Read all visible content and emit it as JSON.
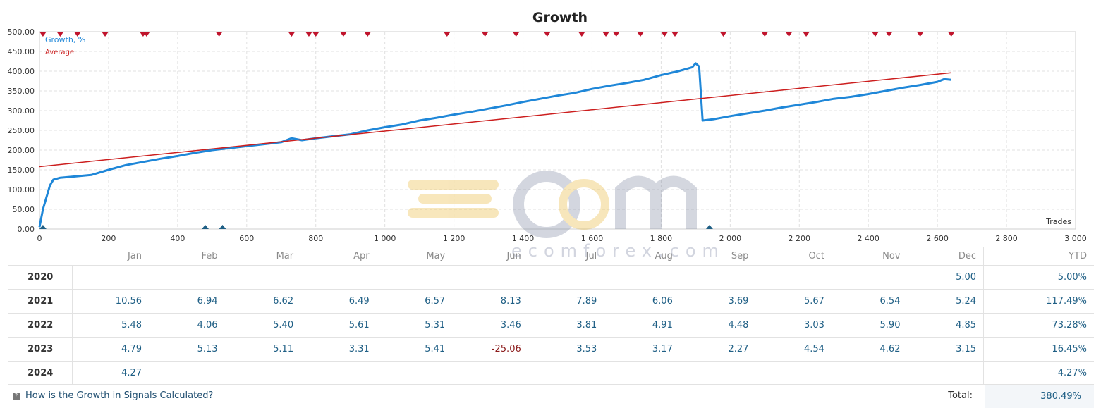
{
  "chart_data": {
    "type": "line",
    "title": "Growth",
    "xlabel": "Trades",
    "ylabel": "",
    "xlim": [
      0,
      3000
    ],
    "ylim": [
      0,
      500
    ],
    "x_ticks": [
      "0",
      "200",
      "400",
      "600",
      "800",
      "1 000",
      "1 200",
      "1 400",
      "1 600",
      "1 800",
      "2 000",
      "2 200",
      "2 400",
      "2 600",
      "2 800",
      "3 000"
    ],
    "y_ticks": [
      "0.00",
      "50.00",
      "100.00",
      "150.00",
      "200.00",
      "250.00",
      "300.00",
      "350.00",
      "400.00",
      "450.00",
      "500.00"
    ],
    "grid": true,
    "legend_placement": "top-left",
    "series": [
      {
        "name": "Growth, %",
        "color": "#1f87d8",
        "points": [
          [
            0,
            5
          ],
          [
            10,
            50
          ],
          [
            20,
            80
          ],
          [
            30,
            110
          ],
          [
            40,
            125
          ],
          [
            60,
            130
          ],
          [
            100,
            133
          ],
          [
            150,
            137
          ],
          [
            200,
            150
          ],
          [
            250,
            162
          ],
          [
            300,
            170
          ],
          [
            350,
            178
          ],
          [
            400,
            185
          ],
          [
            450,
            193
          ],
          [
            500,
            200
          ],
          [
            550,
            205
          ],
          [
            600,
            210
          ],
          [
            650,
            215
          ],
          [
            700,
            220
          ],
          [
            730,
            230
          ],
          [
            760,
            225
          ],
          [
            800,
            230
          ],
          [
            850,
            235
          ],
          [
            900,
            240
          ],
          [
            950,
            250
          ],
          [
            1000,
            258
          ],
          [
            1050,
            265
          ],
          [
            1100,
            275
          ],
          [
            1150,
            282
          ],
          [
            1200,
            290
          ],
          [
            1250,
            297
          ],
          [
            1300,
            305
          ],
          [
            1350,
            313
          ],
          [
            1400,
            322
          ],
          [
            1450,
            330
          ],
          [
            1500,
            338
          ],
          [
            1550,
            345
          ],
          [
            1600,
            355
          ],
          [
            1650,
            363
          ],
          [
            1700,
            370
          ],
          [
            1750,
            378
          ],
          [
            1800,
            390
          ],
          [
            1850,
            400
          ],
          [
            1890,
            410
          ],
          [
            1900,
            420
          ],
          [
            1910,
            412
          ],
          [
            1920,
            275
          ],
          [
            1950,
            278
          ],
          [
            2000,
            286
          ],
          [
            2050,
            293
          ],
          [
            2100,
            300
          ],
          [
            2150,
            308
          ],
          [
            2200,
            315
          ],
          [
            2250,
            322
          ],
          [
            2300,
            330
          ],
          [
            2350,
            335
          ],
          [
            2400,
            342
          ],
          [
            2450,
            350
          ],
          [
            2500,
            358
          ],
          [
            2550,
            365
          ],
          [
            2600,
            373
          ],
          [
            2620,
            380
          ],
          [
            2640,
            378
          ]
        ]
      },
      {
        "name": "Average",
        "color": "#cc1e1e",
        "points": [
          [
            0,
            158
          ],
          [
            2640,
            396
          ]
        ]
      }
    ],
    "markers_top_x": [
      10,
      60,
      110,
      190,
      300,
      310,
      520,
      730,
      780,
      880,
      800,
      950,
      1180,
      1290,
      1380,
      1470,
      1570,
      1640,
      1670,
      1740,
      1810,
      1840,
      1980,
      2100,
      2170,
      2220,
      2420,
      2460,
      2550,
      2640
    ],
    "markers_bottom_x": [
      10,
      480,
      530,
      1940
    ]
  },
  "watermark": "ecomforex.com",
  "table": {
    "headers": [
      "Jan",
      "Feb",
      "Mar",
      "Apr",
      "May",
      "Jun",
      "Jul",
      "Aug",
      "Sep",
      "Oct",
      "Nov",
      "Dec"
    ],
    "ytd_header": "YTD",
    "rows": [
      {
        "year": "2020",
        "months": [
          "",
          "",
          "",
          "",
          "",
          "",
          "",
          "",
          "",
          "",
          "",
          "5.00"
        ],
        "ytd": "5.00%"
      },
      {
        "year": "2021",
        "months": [
          "10.56",
          "6.94",
          "6.62",
          "6.49",
          "6.57",
          "8.13",
          "7.89",
          "6.06",
          "3.69",
          "5.67",
          "6.54",
          "5.24"
        ],
        "ytd": "117.49%"
      },
      {
        "year": "2022",
        "months": [
          "5.48",
          "4.06",
          "5.40",
          "5.61",
          "5.31",
          "3.46",
          "3.81",
          "4.91",
          "4.48",
          "3.03",
          "5.90",
          "4.85"
        ],
        "ytd": "73.28%"
      },
      {
        "year": "2023",
        "months": [
          "4.79",
          "5.13",
          "5.11",
          "3.31",
          "5.41",
          "-25.06",
          "3.53",
          "3.17",
          "2.27",
          "4.54",
          "4.62",
          "3.15"
        ],
        "ytd": "16.45%"
      },
      {
        "year": "2024",
        "months": [
          "4.27",
          "",
          "",
          "",
          "",
          "",
          "",
          "",
          "",
          "",
          "",
          ""
        ],
        "ytd": "4.27%"
      }
    ]
  },
  "footer": {
    "help_link": "How is the Growth in Signals Calculated?",
    "total_label": "Total:",
    "total_value": "380.49%"
  }
}
